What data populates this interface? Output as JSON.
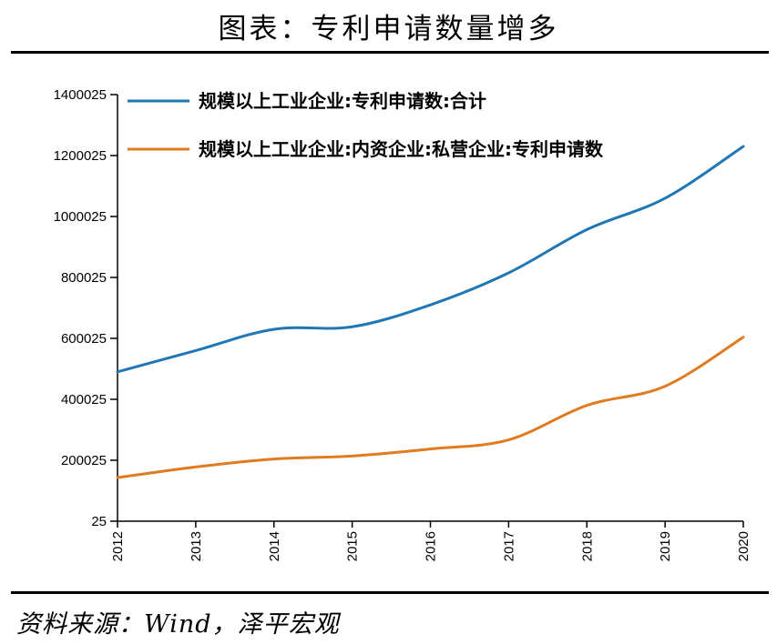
{
  "header": {
    "title": "图表：专利申请数量增多"
  },
  "footer": {
    "source": "资料来源：Wind，泽平宏观"
  },
  "chart_data": {
    "type": "line",
    "title": "",
    "xlabel": "",
    "ylabel": "",
    "x": [
      "2012",
      "2013",
      "2014",
      "2015",
      "2016",
      "2017",
      "2018",
      "2019",
      "2020"
    ],
    "yticks": [
      "25",
      "200025",
      "400025",
      "600025",
      "800025",
      "1000025",
      "1200025",
      "1400025"
    ],
    "ylim": [
      25,
      1400025
    ],
    "grid": false,
    "legend_position": "top-left",
    "series": [
      {
        "name": "规模以上工业企业:专利申请数:合计",
        "color": "#1F77B4",
        "values": [
          490000,
          560000,
          630000,
          638000,
          710000,
          815000,
          957000,
          1060000,
          1230000
        ]
      },
      {
        "name": "规模以上工业企业:内资企业:私营企业:专利申请数",
        "color": "#E07B20",
        "values": [
          143000,
          178000,
          204000,
          214000,
          237000,
          267000,
          380000,
          443000,
          604000
        ]
      }
    ]
  }
}
